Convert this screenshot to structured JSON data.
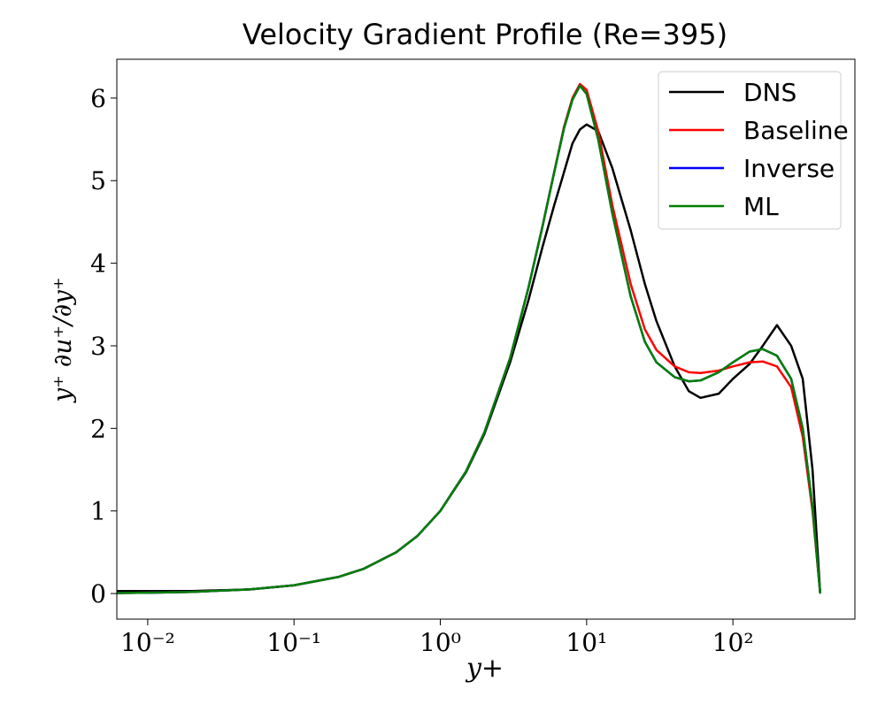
{
  "chart_data": {
    "type": "line",
    "title": "Velocity Gradient Profile (Re=395)",
    "xlabel": "y+",
    "ylabel": "y⁺ ∂u⁺/∂y⁺",
    "xscale": "log",
    "x": [
      0.00615,
      0.01,
      0.02,
      0.05,
      0.1,
      0.2,
      0.3,
      0.5,
      0.7,
      1,
      1.5,
      2,
      3,
      4,
      5,
      6,
      7,
      8,
      9,
      10,
      12,
      15,
      20,
      25,
      30,
      40,
      50,
      60,
      80,
      100,
      130,
      160,
      200,
      250,
      300,
      350,
      395
    ],
    "series": [
      {
        "name": "DNS",
        "color": "#000000",
        "values": [
          0.03,
          0.03,
          0.03,
          0.05,
          0.1,
          0.2,
          0.3,
          0.5,
          0.7,
          1.0,
          1.47,
          1.93,
          2.8,
          3.55,
          4.2,
          4.7,
          5.1,
          5.45,
          5.62,
          5.68,
          5.6,
          5.15,
          4.4,
          3.75,
          3.3,
          2.75,
          2.45,
          2.37,
          2.42,
          2.6,
          2.78,
          3.0,
          3.25,
          3.0,
          2.6,
          1.5,
          0
        ]
      },
      {
        "name": "Baseline",
        "color": "#ff0000",
        "values": [
          0.006,
          0.01,
          0.02,
          0.05,
          0.1,
          0.2,
          0.3,
          0.5,
          0.7,
          1.0,
          1.48,
          1.95,
          2.85,
          3.7,
          4.45,
          5.1,
          5.65,
          6.0,
          6.17,
          6.1,
          5.6,
          4.7,
          3.75,
          3.2,
          2.95,
          2.75,
          2.68,
          2.67,
          2.7,
          2.75,
          2.8,
          2.81,
          2.75,
          2.5,
          1.9,
          1.0,
          0
        ]
      },
      {
        "name": "Inverse",
        "color": "#0000ff",
        "values": [
          0.006,
          0.01,
          0.02,
          0.05,
          0.1,
          0.2,
          0.3,
          0.5,
          0.7,
          1.0,
          1.48,
          1.95,
          2.85,
          3.7,
          4.45,
          5.1,
          5.63,
          5.98,
          6.15,
          6.05,
          5.5,
          4.6,
          3.6,
          3.05,
          2.8,
          2.62,
          2.57,
          2.58,
          2.68,
          2.8,
          2.93,
          2.96,
          2.88,
          2.6,
          2.0,
          1.05,
          0
        ]
      },
      {
        "name": "ML",
        "color": "#008000",
        "values": [
          0.006,
          0.01,
          0.02,
          0.05,
          0.1,
          0.2,
          0.3,
          0.5,
          0.7,
          1.0,
          1.48,
          1.95,
          2.85,
          3.7,
          4.45,
          5.1,
          5.63,
          5.98,
          6.15,
          6.05,
          5.5,
          4.6,
          3.6,
          3.05,
          2.8,
          2.62,
          2.57,
          2.58,
          2.68,
          2.8,
          2.93,
          2.96,
          2.88,
          2.6,
          2.0,
          1.05,
          0
        ]
      }
    ],
    "xlim": [
      0.00615,
      682
    ],
    "ylim": [
      -0.31,
      6.47
    ],
    "xticks": [
      {
        "value": 0.01,
        "label": "10⁻²"
      },
      {
        "value": 0.1,
        "label": "10⁻¹"
      },
      {
        "value": 1,
        "label": "10⁰"
      },
      {
        "value": 10,
        "label": "10¹"
      },
      {
        "value": 100,
        "label": "10²"
      }
    ],
    "yticks": [
      0,
      1,
      2,
      3,
      4,
      5,
      6
    ],
    "legend": "upper right"
  }
}
